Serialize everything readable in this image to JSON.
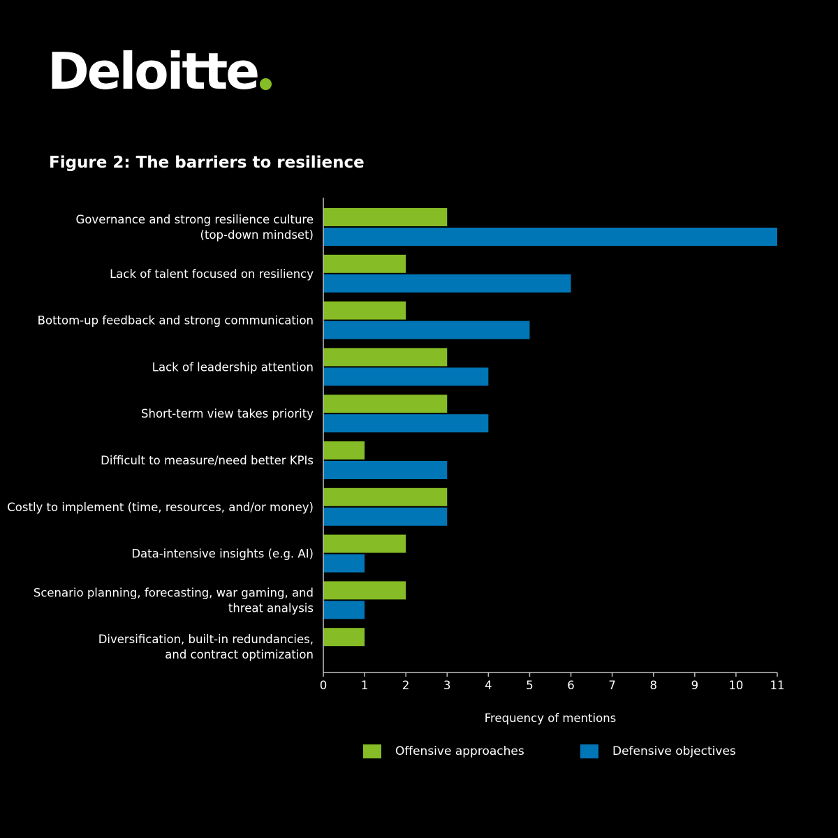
{
  "logo": {
    "text": "Deloitte",
    "dot_color": "#86bc25"
  },
  "figure_title": "Figure 2: The barriers to resilience",
  "legend": [
    {
      "label": "Offensive approaches",
      "color": "#86bc25"
    },
    {
      "label": "Defensive objectives",
      "color": "#0076b6"
    }
  ],
  "chart_data": {
    "type": "bar",
    "orientation": "horizontal",
    "title": "Figure 2: The barriers to resilience",
    "xlabel": "Frequency of mentions",
    "ylabel": "",
    "xlim": [
      0,
      11
    ],
    "xticks": [
      0,
      1,
      2,
      3,
      4,
      5,
      6,
      7,
      8,
      9,
      10,
      11
    ],
    "grid": false,
    "legend_position": "bottom",
    "categories": [
      [
        "Governance and strong resilience culture",
        "(top-down mindset)"
      ],
      [
        "Lack of talent focused on resiliency"
      ],
      [
        "Bottom-up feedback and strong communication"
      ],
      [
        "Lack of leadership attention"
      ],
      [
        "Short-term view takes priority"
      ],
      [
        "Difficult to measure/need better KPIs"
      ],
      [
        "Costly to implement (time, resources, and/or money)"
      ],
      [
        "Data-intensive insights (e.g. AI)"
      ],
      [
        "Scenario planning, forecasting, war gaming, and",
        "threat analysis"
      ],
      [
        "Diversification, built-in redundancies,",
        "and contract optimization"
      ]
    ],
    "series": [
      {
        "name": "Offensive approaches",
        "color": "#86bc25",
        "values": [
          3,
          2,
          2,
          3,
          3,
          1,
          3,
          2,
          2,
          1
        ]
      },
      {
        "name": "Defensive objectives",
        "color": "#0076b6",
        "values": [
          11,
          6,
          5,
          4,
          4,
          3,
          3,
          1,
          1,
          0
        ]
      }
    ]
  }
}
